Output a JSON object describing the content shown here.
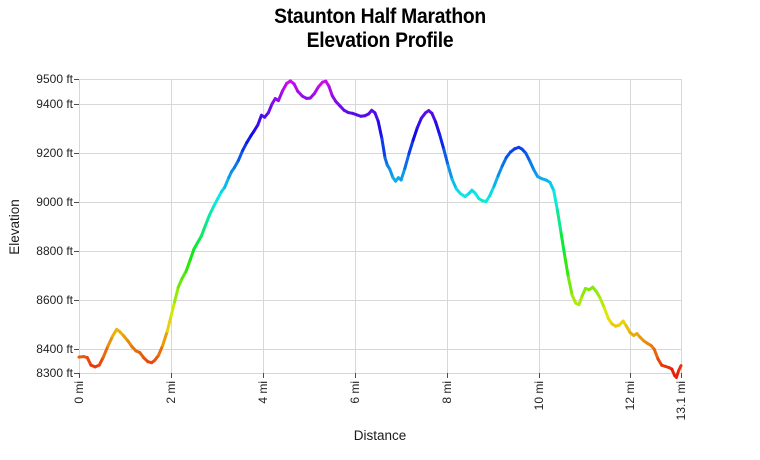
{
  "page": {
    "background": "#ffffff"
  },
  "chart_data": {
    "type": "line",
    "title": "Staunton Half Marathon",
    "subtitle": "Elevation Profile",
    "xlabel": "Distance",
    "ylabel": "Elevation",
    "xlim": [
      0,
      13.1
    ],
    "ylim": [
      8300,
      9500
    ],
    "grid": true,
    "legend": "none",
    "x_ticks": [
      {
        "value": 0,
        "label": "0 mi"
      },
      {
        "value": 2,
        "label": "2 mi"
      },
      {
        "value": 4,
        "label": "4 mi"
      },
      {
        "value": 6,
        "label": "6 mi"
      },
      {
        "value": 8,
        "label": "8 mi"
      },
      {
        "value": 10,
        "label": "10 mi"
      },
      {
        "value": 12,
        "label": "12 mi"
      },
      {
        "value": 13.1,
        "label": "13.1 mi"
      }
    ],
    "y_ticks": [
      {
        "value": 9500,
        "label": "9500 ft"
      },
      {
        "value": 9400,
        "label": "9400 ft"
      },
      {
        "value": 9200,
        "label": "9200 ft"
      },
      {
        "value": 9000,
        "label": "9000 ft"
      },
      {
        "value": 8800,
        "label": "8800 ft"
      },
      {
        "value": 8600,
        "label": "8600 ft"
      },
      {
        "value": 8400,
        "label": "8400 ft"
      },
      {
        "value": 8300,
        "label": "8300 ft"
      }
    ],
    "color_by": "elevation",
    "colormap": {
      "type": "rainbow",
      "hue_start": 5,
      "hue_end": 295,
      "saturation_pct": 90,
      "lightness_pct": 48,
      "low_color": "#e6380d",
      "high_color": "#cc14e0"
    },
    "style": {
      "grid_color": "#d7d7d7",
      "tick_color": "#4d4d4d",
      "text_color": "#1a1a1a",
      "line_width": 3
    },
    "series": [
      {
        "name": "elevation_profile",
        "x_unit": "mi",
        "y_unit": "ft",
        "points": [
          [
            0.0,
            8365
          ],
          [
            0.1,
            8367
          ],
          [
            0.18,
            8363
          ],
          [
            0.26,
            8332
          ],
          [
            0.35,
            8325
          ],
          [
            0.44,
            8332
          ],
          [
            0.53,
            8365
          ],
          [
            0.63,
            8410
          ],
          [
            0.73,
            8450
          ],
          [
            0.82,
            8478
          ],
          [
            0.88,
            8470
          ],
          [
            0.97,
            8452
          ],
          [
            1.06,
            8432
          ],
          [
            1.15,
            8408
          ],
          [
            1.24,
            8390
          ],
          [
            1.32,
            8384
          ],
          [
            1.41,
            8362
          ],
          [
            1.5,
            8346
          ],
          [
            1.58,
            8342
          ],
          [
            1.65,
            8352
          ],
          [
            1.73,
            8372
          ],
          [
            1.82,
            8412
          ],
          [
            1.92,
            8470
          ],
          [
            2.0,
            8530
          ],
          [
            2.08,
            8590
          ],
          [
            2.16,
            8650
          ],
          [
            2.24,
            8685
          ],
          [
            2.33,
            8715
          ],
          [
            2.42,
            8762
          ],
          [
            2.5,
            8805
          ],
          [
            2.58,
            8832
          ],
          [
            2.66,
            8858
          ],
          [
            2.75,
            8902
          ],
          [
            2.84,
            8945
          ],
          [
            2.93,
            8980
          ],
          [
            3.02,
            9012
          ],
          [
            3.1,
            9040
          ],
          [
            3.17,
            9058
          ],
          [
            3.26,
            9098
          ],
          [
            3.32,
            9122
          ],
          [
            3.38,
            9138
          ],
          [
            3.47,
            9168
          ],
          [
            3.56,
            9208
          ],
          [
            3.65,
            9240
          ],
          [
            3.74,
            9268
          ],
          [
            3.8,
            9285
          ],
          [
            3.89,
            9312
          ],
          [
            3.97,
            9352
          ],
          [
            4.04,
            9344
          ],
          [
            4.12,
            9362
          ],
          [
            4.2,
            9398
          ],
          [
            4.27,
            9420
          ],
          [
            4.34,
            9412
          ],
          [
            4.43,
            9452
          ],
          [
            4.52,
            9482
          ],
          [
            4.6,
            9492
          ],
          [
            4.68,
            9480
          ],
          [
            4.76,
            9450
          ],
          [
            4.86,
            9430
          ],
          [
            4.95,
            9421
          ],
          [
            5.03,
            9422
          ],
          [
            5.12,
            9440
          ],
          [
            5.21,
            9468
          ],
          [
            5.3,
            9487
          ],
          [
            5.37,
            9491
          ],
          [
            5.44,
            9470
          ],
          [
            5.51,
            9432
          ],
          [
            5.59,
            9408
          ],
          [
            5.68,
            9390
          ],
          [
            5.77,
            9372
          ],
          [
            5.86,
            9363
          ],
          [
            5.95,
            9360
          ],
          [
            6.04,
            9354
          ],
          [
            6.13,
            9348
          ],
          [
            6.22,
            9350
          ],
          [
            6.3,
            9357
          ],
          [
            6.37,
            9372
          ],
          [
            6.44,
            9362
          ],
          [
            6.51,
            9328
          ],
          [
            6.59,
            9258
          ],
          [
            6.66,
            9178
          ],
          [
            6.71,
            9148
          ],
          [
            6.76,
            9133
          ],
          [
            6.83,
            9098
          ],
          [
            6.89,
            9083
          ],
          [
            6.95,
            9097
          ],
          [
            7.01,
            9088
          ],
          [
            7.09,
            9135
          ],
          [
            7.18,
            9195
          ],
          [
            7.27,
            9250
          ],
          [
            7.36,
            9300
          ],
          [
            7.45,
            9340
          ],
          [
            7.54,
            9362
          ],
          [
            7.61,
            9371
          ],
          [
            7.68,
            9360
          ],
          [
            7.76,
            9325
          ],
          [
            7.85,
            9272
          ],
          [
            7.94,
            9212
          ],
          [
            8.03,
            9148
          ],
          [
            8.12,
            9090
          ],
          [
            8.21,
            9052
          ],
          [
            8.3,
            9032
          ],
          [
            8.4,
            9020
          ],
          [
            8.48,
            9032
          ],
          [
            8.55,
            9046
          ],
          [
            8.62,
            9034
          ],
          [
            8.7,
            9012
          ],
          [
            8.78,
            9003
          ],
          [
            8.86,
            9000
          ],
          [
            8.94,
            9024
          ],
          [
            9.03,
            9062
          ],
          [
            9.12,
            9105
          ],
          [
            9.21,
            9145
          ],
          [
            9.3,
            9180
          ],
          [
            9.39,
            9202
          ],
          [
            9.48,
            9215
          ],
          [
            9.57,
            9221
          ],
          [
            9.64,
            9214
          ],
          [
            9.72,
            9198
          ],
          [
            9.81,
            9165
          ],
          [
            9.9,
            9128
          ],
          [
            9.98,
            9102
          ],
          [
            10.07,
            9093
          ],
          [
            10.16,
            9088
          ],
          [
            10.25,
            9078
          ],
          [
            10.33,
            9045
          ],
          [
            10.41,
            8965
          ],
          [
            10.49,
            8872
          ],
          [
            10.57,
            8778
          ],
          [
            10.65,
            8690
          ],
          [
            10.73,
            8618
          ],
          [
            10.81,
            8585
          ],
          [
            10.88,
            8579
          ],
          [
            10.95,
            8615
          ],
          [
            11.02,
            8645
          ],
          [
            11.1,
            8640
          ],
          [
            11.18,
            8650
          ],
          [
            11.26,
            8632
          ],
          [
            11.34,
            8606
          ],
          [
            11.43,
            8566
          ],
          [
            11.52,
            8522
          ],
          [
            11.6,
            8500
          ],
          [
            11.68,
            8491
          ],
          [
            11.76,
            8496
          ],
          [
            11.84,
            8512
          ],
          [
            11.91,
            8492
          ],
          [
            11.99,
            8466
          ],
          [
            12.07,
            8453
          ],
          [
            12.14,
            8461
          ],
          [
            12.21,
            8446
          ],
          [
            12.29,
            8431
          ],
          [
            12.37,
            8421
          ],
          [
            12.45,
            8412
          ],
          [
            12.52,
            8396
          ],
          [
            12.6,
            8357
          ],
          [
            12.68,
            8332
          ],
          [
            12.76,
            8327
          ],
          [
            12.84,
            8322
          ],
          [
            12.9,
            8316
          ],
          [
            12.96,
            8290
          ],
          [
            13.0,
            8282
          ],
          [
            13.05,
            8310
          ],
          [
            13.1,
            8330
          ]
        ]
      }
    ]
  }
}
